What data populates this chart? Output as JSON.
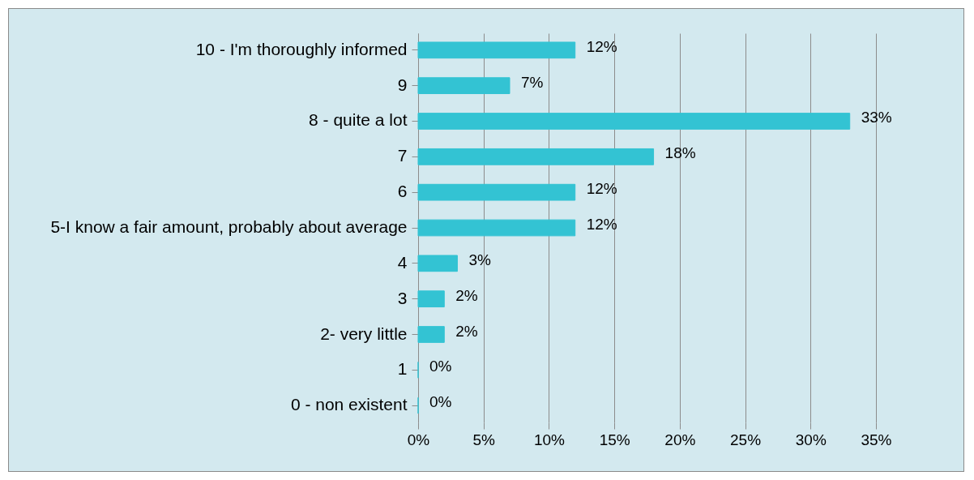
{
  "chart_data": {
    "type": "bar",
    "orientation": "horizontal",
    "categories": [
      "10 - I'm thoroughly informed",
      "9",
      "8 - quite a lot",
      "7",
      "6",
      "5-I know a fair amount, probably about average",
      "4",
      "3",
      "2- very little",
      "1",
      "0 - non existent"
    ],
    "values": [
      12,
      7,
      33,
      18,
      12,
      12,
      3,
      2,
      2,
      0,
      0
    ],
    "value_labels": [
      "12%",
      "7%",
      "33%",
      "18%",
      "12%",
      "12%",
      "3%",
      "2%",
      "2%",
      "0%",
      "0%"
    ],
    "color": "#33c3d3",
    "xlim": [
      0,
      35
    ],
    "xticks": [
      {
        "value": 0,
        "label": "0%"
      },
      {
        "value": 5,
        "label": "5%"
      },
      {
        "value": 10,
        "label": "10%"
      },
      {
        "value": 15,
        "label": "15%"
      },
      {
        "value": 20,
        "label": "20%"
      },
      {
        "value": 25,
        "label": "25%"
      },
      {
        "value": 30,
        "label": "30%"
      },
      {
        "value": 35,
        "label": "35%"
      }
    ],
    "grid": "x"
  }
}
